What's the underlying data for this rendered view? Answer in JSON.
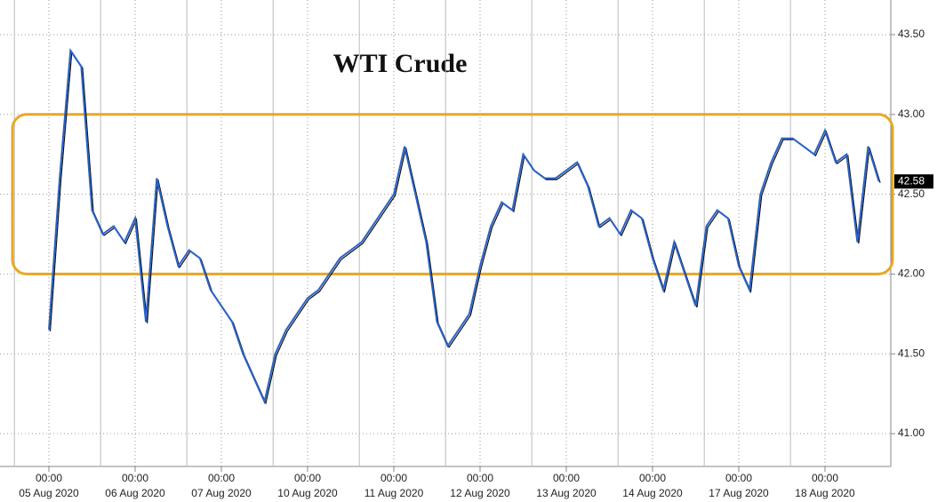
{
  "chart_data": {
    "type": "line",
    "title": "WTI Crude",
    "x": [
      "05 Aug 2020 00:00",
      "05 Aug 2020 03:00",
      "05 Aug 2020 06:00",
      "05 Aug 2020 09:00",
      "05 Aug 2020 12:00",
      "05 Aug 2020 15:00",
      "05 Aug 2020 18:00",
      "05 Aug 2020 21:00",
      "06 Aug 2020 00:00",
      "06 Aug 2020 03:00",
      "06 Aug 2020 06:00",
      "06 Aug 2020 09:00",
      "06 Aug 2020 12:00",
      "06 Aug 2020 15:00",
      "06 Aug 2020 18:00",
      "06 Aug 2020 21:00",
      "07 Aug 2020 00:00",
      "07 Aug 2020 03:00",
      "07 Aug 2020 06:00",
      "07 Aug 2020 09:00",
      "07 Aug 2020 12:00",
      "07 Aug 2020 15:00",
      "07 Aug 2020 18:00",
      "07 Aug 2020 21:00",
      "10 Aug 2020 00:00",
      "10 Aug 2020 03:00",
      "10 Aug 2020 06:00",
      "10 Aug 2020 09:00",
      "10 Aug 2020 12:00",
      "10 Aug 2020 15:00",
      "10 Aug 2020 18:00",
      "10 Aug 2020 21:00",
      "11 Aug 2020 00:00",
      "11 Aug 2020 03:00",
      "11 Aug 2020 06:00",
      "11 Aug 2020 09:00",
      "11 Aug 2020 12:00",
      "11 Aug 2020 15:00",
      "11 Aug 2020 18:00",
      "11 Aug 2020 21:00",
      "12 Aug 2020 00:00",
      "12 Aug 2020 03:00",
      "12 Aug 2020 06:00",
      "12 Aug 2020 09:00",
      "12 Aug 2020 12:00",
      "12 Aug 2020 15:00",
      "12 Aug 2020 18:00",
      "12 Aug 2020 21:00",
      "13 Aug 2020 00:00",
      "13 Aug 2020 03:00",
      "13 Aug 2020 06:00",
      "13 Aug 2020 09:00",
      "13 Aug 2020 12:00",
      "13 Aug 2020 15:00",
      "13 Aug 2020 18:00",
      "13 Aug 2020 21:00",
      "14 Aug 2020 00:00",
      "14 Aug 2020 03:00",
      "14 Aug 2020 06:00",
      "14 Aug 2020 09:00",
      "14 Aug 2020 12:00",
      "14 Aug 2020 15:00",
      "14 Aug 2020 18:00",
      "14 Aug 2020 21:00",
      "17 Aug 2020 00:00",
      "17 Aug 2020 03:00",
      "17 Aug 2020 06:00",
      "17 Aug 2020 09:00",
      "17 Aug 2020 12:00",
      "17 Aug 2020 15:00",
      "17 Aug 2020 18:00",
      "17 Aug 2020 21:00",
      "18 Aug 2020 00:00",
      "18 Aug 2020 03:00",
      "18 Aug 2020 06:00",
      "18 Aug 2020 09:00",
      "18 Aug 2020 12:00",
      "18 Aug 2020 15:00"
    ],
    "series": [
      {
        "name": "WTI Crude",
        "color": "#2a63c9",
        "values": [
          41.65,
          42.6,
          43.4,
          43.3,
          42.4,
          42.25,
          42.3,
          42.2,
          42.35,
          41.7,
          42.6,
          42.3,
          42.05,
          42.15,
          42.1,
          41.9,
          41.8,
          41.7,
          41.5,
          41.35,
          41.2,
          41.5,
          41.65,
          41.75,
          41.85,
          41.9,
          42.0,
          42.1,
          42.15,
          42.2,
          42.3,
          42.4,
          42.5,
          42.8,
          42.5,
          42.2,
          41.7,
          41.55,
          41.65,
          41.75,
          42.05,
          42.3,
          42.45,
          42.4,
          42.75,
          42.65,
          42.6,
          42.6,
          42.65,
          42.7,
          42.55,
          42.3,
          42.35,
          42.25,
          42.4,
          42.35,
          42.1,
          41.9,
          42.2,
          42.0,
          41.8,
          42.3,
          42.4,
          42.35,
          42.05,
          41.9,
          42.5,
          42.7,
          42.85,
          42.85,
          42.8,
          42.75,
          42.9,
          42.7,
          42.75,
          42.2,
          42.8,
          42.58
        ],
        "value_labels": [
          null,
          null,
          null,
          null,
          null,
          null,
          null,
          null,
          null,
          null,
          null,
          null,
          null,
          null,
          null,
          null,
          null,
          null,
          null,
          null,
          null,
          null,
          null,
          null,
          null,
          null,
          null,
          null,
          null,
          null,
          null,
          null,
          null,
          null,
          null,
          null,
          null,
          null,
          null,
          null,
          null,
          null,
          null,
          null,
          null,
          null,
          null,
          null,
          null,
          null,
          null,
          null,
          null,
          null,
          null,
          null,
          null,
          null,
          null,
          null,
          null,
          null,
          null,
          null,
          null,
          null,
          null,
          null,
          null,
          null,
          null,
          null,
          null,
          null,
          null,
          null,
          null,
          "42.58"
        ]
      }
    ],
    "ylim": [
      40.85,
      43.55
    ],
    "yticks": [
      {
        "value": 41,
        "label": "41.00"
      },
      {
        "value": 41.5,
        "label": "41.50"
      },
      {
        "value": 42,
        "label": "42.00"
      },
      {
        "value": 42.5,
        "label": "42.50"
      },
      {
        "value": 43,
        "label": "43.00"
      },
      {
        "value": 43.5,
        "label": "43.50"
      }
    ],
    "xticks": [
      {
        "value": "05 Aug 2020 00:00",
        "label": [
          "00:00",
          "05 Aug 2020"
        ]
      },
      {
        "value": "06 Aug 2020 00:00",
        "label": [
          "00:00",
          "06 Aug 2020"
        ]
      },
      {
        "value": "07 Aug 2020 00:00",
        "label": [
          "00:00",
          "07 Aug 2020"
        ]
      },
      {
        "value": "10 Aug 2020 00:00",
        "label": [
          "00:00",
          "10 Aug 2020"
        ]
      },
      {
        "value": "11 Aug 2020 00:00",
        "label": [
          "00:00",
          "11 Aug 2020"
        ]
      },
      {
        "value": "12 Aug 2020 00:00",
        "label": [
          "00:00",
          "12 Aug 2020"
        ]
      },
      {
        "value": "13 Aug 2020 00:00",
        "label": [
          "00:00",
          "13 Aug 2020"
        ]
      },
      {
        "value": "14 Aug 2020 00:00",
        "label": [
          "00:00",
          "14 Aug 2020"
        ]
      },
      {
        "value": "17 Aug 2020 00:00",
        "label": [
          "00:00",
          "17 Aug 2020"
        ]
      },
      {
        "value": "18 Aug 2020 00:00",
        "label": [
          "00:00",
          "18 Aug 2020"
        ]
      }
    ],
    "highlight_range": [
      42,
      43
    ],
    "highlight_color": "#e8a823",
    "grid": true
  }
}
